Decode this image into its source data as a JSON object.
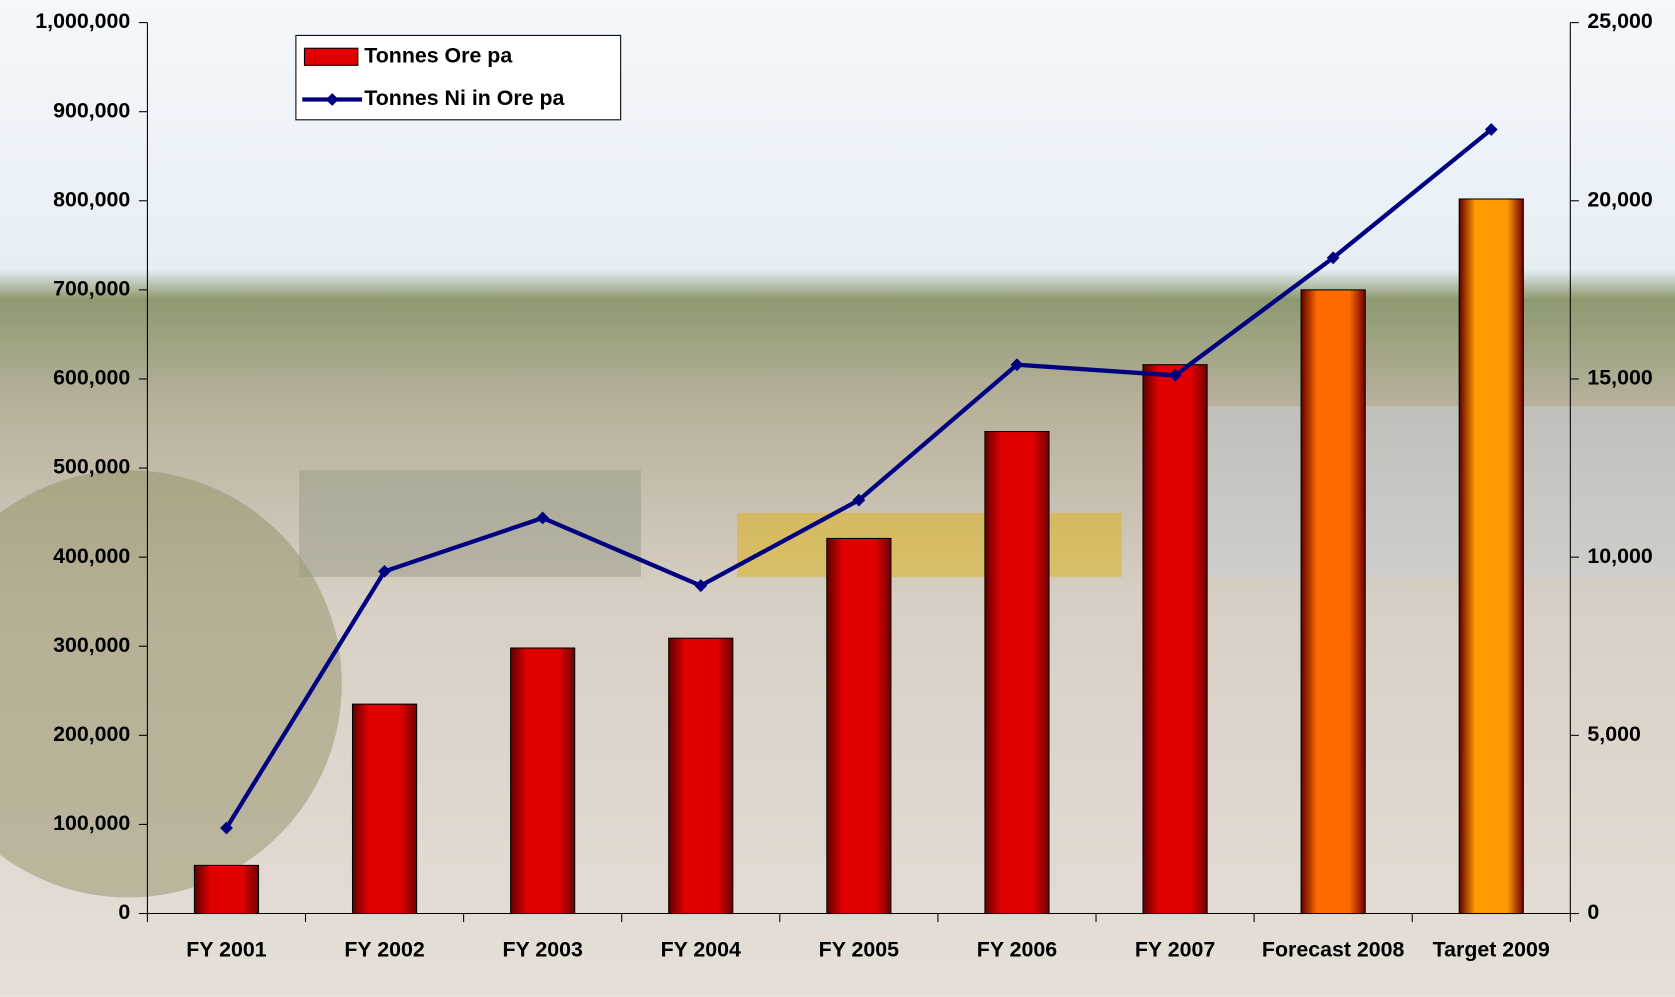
{
  "chart_data": {
    "type": "bar-line",
    "categories": [
      "FY 2001",
      "FY 2002",
      "FY 2003",
      "FY 2004",
      "FY 2005",
      "FY 2006",
      "FY 2007",
      "Forecast 2008",
      "Target 2009"
    ],
    "series": [
      {
        "name": "Tonnes Ore pa",
        "type": "bar",
        "color": "#e00000",
        "colors": [
          "#e00000",
          "#e00000",
          "#e00000",
          "#e00000",
          "#e00000",
          "#e00000",
          "#e00000",
          "#ff6a00",
          "#ff9a00"
        ],
        "values": [
          54000,
          235000,
          298000,
          309000,
          421000,
          541000,
          616000,
          700000,
          802000
        ]
      },
      {
        "name": "Tonnes Ni in Ore pa",
        "type": "line",
        "axis": "y2",
        "color": "#000080",
        "values": [
          2400,
          9600,
          11100,
          9200,
          11600,
          15400,
          15100,
          18400,
          22000
        ]
      }
    ],
    "ylim": [
      0,
      1000000
    ],
    "yticks": [
      0,
      {
        "value": 100000,
        "label": "100,000"
      },
      {
        "value": 200000,
        "label": "200,000"
      },
      {
        "value": 300000,
        "label": "300,000"
      },
      {
        "value": 400000,
        "label": "400,000"
      },
      {
        "value": 500000,
        "label": "500,000"
      },
      {
        "value": 600000,
        "label": "600,000"
      },
      {
        "value": 700000,
        "label": "700,000"
      },
      {
        "value": 800000,
        "label": "800,000"
      },
      {
        "value": 900000,
        "label": "900,000"
      },
      {
        "value": 1000000,
        "label": "1,000,000"
      }
    ],
    "y2lim": [
      0,
      25000
    ],
    "y2ticks": [
      0,
      {
        "value": 5000,
        "label": "5,000"
      },
      {
        "value": 10000,
        "label": "10,000"
      },
      {
        "value": 15000,
        "label": "15,000"
      },
      {
        "value": 20000,
        "label": "20,000"
      },
      {
        "value": 25000,
        "label": "25,000"
      }
    ],
    "legend": "top-left"
  }
}
